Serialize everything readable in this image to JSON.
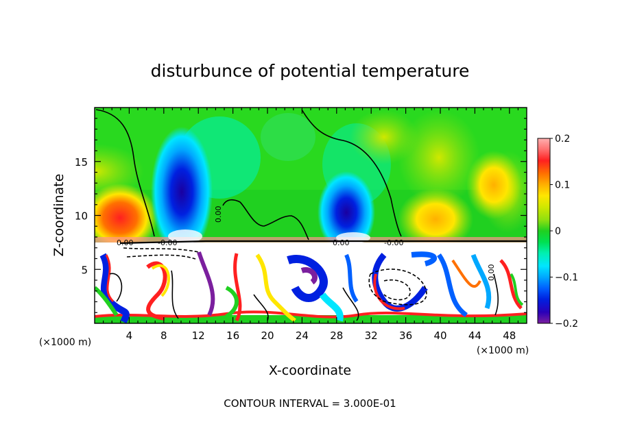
{
  "chart_data": {
    "type": "heatmap",
    "title": "disturbunce of potential temperature",
    "xlabel": "X-coordinate",
    "ylabel": "Z-coordinate",
    "x_unit": "(×1000 m)",
    "x_unit_right": "(×1000 m)",
    "xlim": [
      0,
      50
    ],
    "ylim": [
      0,
      20
    ],
    "x_ticks": [
      "4",
      "8",
      "12",
      "16",
      "20",
      "24",
      "28",
      "32",
      "36",
      "40",
      "44",
      "48"
    ],
    "y_ticks": [
      "5",
      "10",
      "15"
    ],
    "footer": "CONTOUR INTERVAL = 3.000E-01",
    "colorbar": {
      "range": [
        -0.2,
        0.2
      ],
      "labels": [
        "0.2",
        "0.1",
        "0",
        "−0.1",
        "−0.2"
      ],
      "colors": [
        "#7b1f9e",
        "#2a00b8",
        "#0020e0",
        "#0060ff",
        "#00a8ff",
        "#00e6ff",
        "#00f0b0",
        "#00e050",
        "#20d020",
        "#90e010",
        "#d0e800",
        "#ffe600",
        "#ffb000",
        "#ff7000",
        "#ff2020",
        "#ff7070",
        "#ffb0b0"
      ]
    },
    "contour_labels": [
      "0.00",
      "-0.00",
      "0.00",
      "-0.00",
      "0.00",
      "0.00"
    ],
    "features": [
      {
        "label": "positive",
        "x": 3,
        "z": 9.5,
        "value": 0.17
      },
      {
        "label": "negative",
        "x": 10,
        "z": 11.5,
        "value": -0.15
      },
      {
        "label": "negative",
        "x": 29,
        "z": 10.5,
        "value": -0.14
      },
      {
        "label": "positive",
        "x": 40,
        "z": 10,
        "value": 0.12
      },
      {
        "label": "positive",
        "x": 46,
        "z": 12,
        "value": 0.08
      }
    ]
  }
}
